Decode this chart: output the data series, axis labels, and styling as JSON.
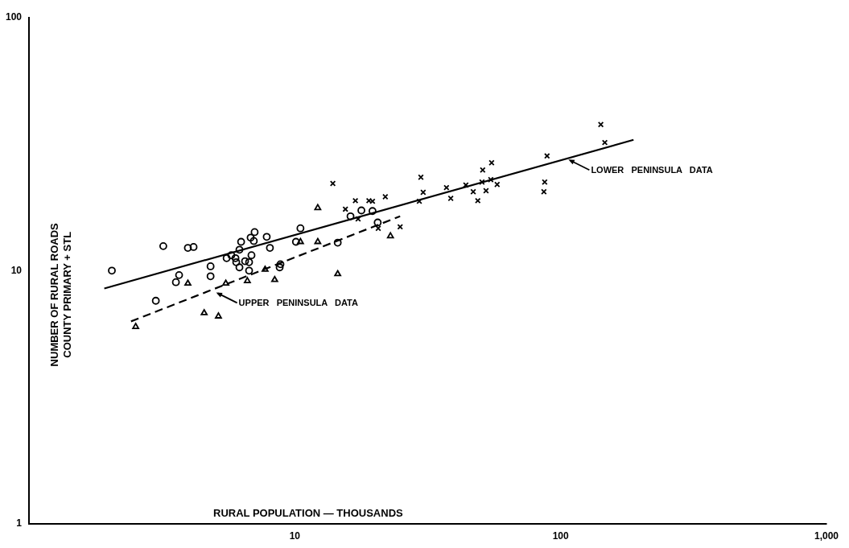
{
  "chart_data": {
    "type": "scatter",
    "xlabel": "RURAL POPULATION — THOUSANDS",
    "ylabel": "NUMBER OF RURAL ROADS\nCOUNTY PRIMARY + STL",
    "log": "xy",
    "grid": false,
    "legend": false,
    "xlim": [
      1,
      1000
    ],
    "xticks": [
      10,
      100,
      {
        "value": 1000,
        "label": "1,000"
      }
    ],
    "ylim": [
      1,
      100
    ],
    "yticks": [
      1,
      10,
      100
    ],
    "series": [
      {
        "marker": "circle",
        "color": "#000000",
        "x": [
          2.05,
          3.2,
          3.96,
          4.16,
          3.67,
          3.57,
          3.0,
          4.82,
          4.82,
          5.54,
          5.77,
          5.98,
          6.02,
          6.19,
          6.28,
          6.87,
          6.5,
          6.73,
          6.19,
          6.73,
          6.82,
          7.06,
          7.01,
          7.84,
          8.06,
          8.83,
          8.77,
          10.5,
          10.1,
          14.5,
          16.2,
          17.8,
          19.6,
          20.5
        ],
        "values": [
          10.0,
          12.5,
          12.3,
          12.4,
          9.6,
          9.0,
          7.6,
          10.4,
          9.5,
          11.2,
          11.5,
          11.2,
          10.8,
          12.1,
          13.0,
          11.5,
          10.9,
          10.8,
          10.3,
          10.0,
          13.5,
          14.2,
          13.1,
          13.6,
          12.3,
          10.6,
          10.3,
          14.7,
          13.0,
          12.9,
          16.4,
          17.3,
          17.2,
          15.5
        ]
      },
      {
        "marker": "triangle",
        "color": "#000000",
        "x": [
          2.52,
          3.96,
          4.56,
          5.16,
          5.5,
          6.63,
          7.73,
          8.4,
          10.5,
          12.2,
          12.2,
          14.5,
          22.9
        ],
        "values": [
          6.0,
          8.9,
          6.8,
          6.6,
          8.9,
          9.1,
          10.1,
          9.2,
          13.0,
          17.7,
          13.0,
          9.7,
          13.7
        ]
      },
      {
        "marker": "cross",
        "color": "#000000",
        "x": [
          13.9,
          16.9,
          19.0,
          19.6,
          21.9,
          15.5,
          17.3,
          20.6,
          24.9,
          29.4,
          30.4,
          29.8,
          37.2,
          38.6,
          44.0,
          46.9,
          48.8,
          50.9,
          55.0,
          50.6,
          52.4,
          54.6,
          57.7,
          88.9,
          87.1,
          86.5,
          141.6,
          146.6
        ],
        "values": [
          22.1,
          18.9,
          18.9,
          18.8,
          19.6,
          17.5,
          16.0,
          14.7,
          14.9,
          18.8,
          20.4,
          23.4,
          21.3,
          19.3,
          21.8,
          20.5,
          18.9,
          25.0,
          26.7,
          22.4,
          20.7,
          22.9,
          21.9,
          28.4,
          22.4,
          20.5,
          37.8,
          32.1
        ]
      },
      {
        "type": "line",
        "marker": "none",
        "line_style": "solid",
        "color": "#000000",
        "x": [
          1.92,
          188
        ],
        "values": [
          8.5,
          32.9
        ]
      },
      {
        "type": "line",
        "marker": "none",
        "line_style": "dashed",
        "color": "#000000",
        "x": [
          2.42,
          24.9
        ],
        "values": [
          6.3,
          16.4
        ]
      }
    ],
    "annotations": [
      {
        "text": "UPPER PENINSULA DATA",
        "x": 5.06,
        "y": 8.2
      },
      {
        "text": "LOWER PENINSULA DATA",
        "x": 107,
        "y": 27.5
      }
    ]
  }
}
